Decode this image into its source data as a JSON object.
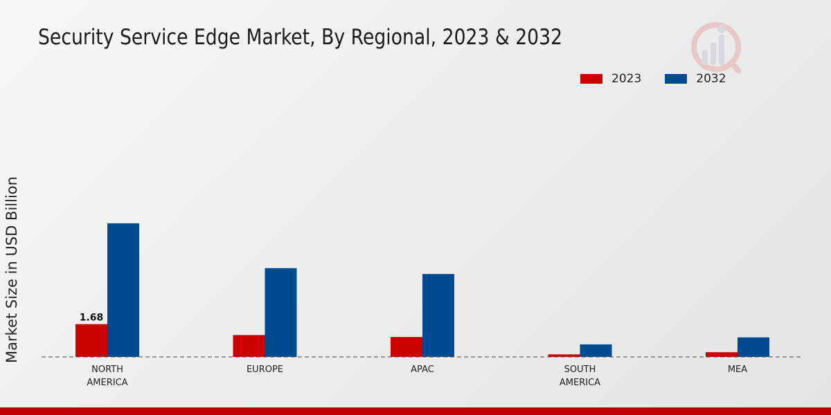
{
  "chart_data": {
    "type": "bar",
    "title": "Security Service Edge Market, By Regional, 2023 & 2032",
    "ylabel": "Market Size in USD Billion",
    "xlabel": "",
    "categories": [
      "NORTH\nAMERICA",
      "EUROPE",
      "APAC",
      "SOUTH\nAMERICA",
      "MEA"
    ],
    "series": [
      {
        "name": "2023",
        "color": "#cc0000",
        "values": [
          1.68,
          1.12,
          1.02,
          0.13,
          0.24
        ]
      },
      {
        "name": "2032",
        "color": "#004a8f",
        "values": [
          6.85,
          4.55,
          4.25,
          0.64,
          1.0
        ]
      }
    ],
    "data_labels": [
      {
        "series": 0,
        "index": 0,
        "text": "1.68"
      }
    ],
    "ylim": [
      0,
      15.85
    ],
    "grid": false,
    "legend_position": "top-right"
  }
}
